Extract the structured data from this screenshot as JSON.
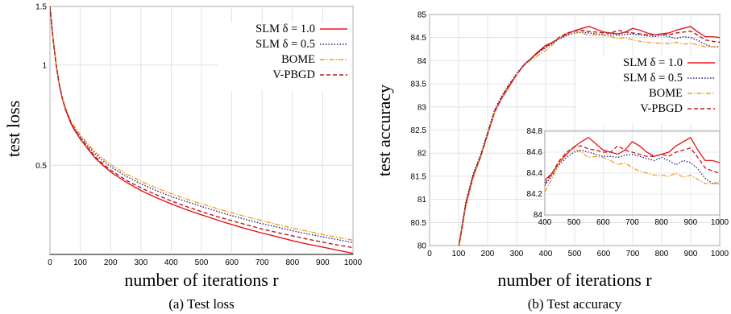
{
  "chart_data": [
    {
      "type": "line",
      "xlabel": "number of iterations r",
      "ylabel": "test loss",
      "caption": "(a) Test loss",
      "y_scale": "log",
      "xlim": [
        0,
        1000
      ],
      "ylim": [
        0.27,
        1.5
      ],
      "xticks": [
        0,
        100,
        200,
        300,
        400,
        500,
        600,
        700,
        800,
        900,
        1000
      ],
      "yticks": [
        0.5,
        1,
        1.5
      ],
      "grid": true,
      "legend_position": "top-right",
      "x": [
        0,
        10,
        20,
        30,
        40,
        50,
        60,
        70,
        80,
        100,
        125,
        150,
        175,
        200,
        250,
        300,
        350,
        400,
        450,
        500,
        550,
        600,
        650,
        700,
        750,
        800,
        850,
        900,
        950,
        1000
      ],
      "series": [
        {
          "name": "SLM δ = 1.0",
          "color": "#e8131b",
          "dash": "",
          "values": [
            1.5,
            1.2,
            1.01,
            0.88,
            0.8,
            0.74,
            0.7,
            0.665,
            0.64,
            0.6,
            0.56,
            0.525,
            0.5,
            0.478,
            0.446,
            0.42,
            0.4,
            0.383,
            0.368,
            0.355,
            0.343,
            0.332,
            0.322,
            0.313,
            0.305,
            0.297,
            0.29,
            0.284,
            0.278,
            0.272
          ]
        },
        {
          "name": "SLM δ = 0.5",
          "color": "#1d1d8a",
          "dash": "1.5,2",
          "values": [
            1.5,
            1.2,
            1.01,
            0.88,
            0.8,
            0.745,
            0.705,
            0.672,
            0.648,
            0.61,
            0.572,
            0.54,
            0.516,
            0.495,
            0.464,
            0.44,
            0.42,
            0.403,
            0.389,
            0.376,
            0.364,
            0.353,
            0.343,
            0.334,
            0.326,
            0.318,
            0.311,
            0.305,
            0.299,
            0.293
          ]
        },
        {
          "name": "BOME",
          "color": "#f0a020",
          "dash": "6,2,1.5,2",
          "values": [
            1.5,
            1.2,
            1.01,
            0.885,
            0.805,
            0.75,
            0.71,
            0.678,
            0.655,
            0.618,
            0.58,
            0.548,
            0.524,
            0.503,
            0.472,
            0.448,
            0.428,
            0.411,
            0.396,
            0.383,
            0.371,
            0.36,
            0.35,
            0.341,
            0.332,
            0.324,
            0.317,
            0.31,
            0.304,
            0.298
          ]
        },
        {
          "name": "V-PBGD",
          "color": "#b71c1c",
          "dash": "5,3",
          "values": [
            1.5,
            1.2,
            1.01,
            0.88,
            0.8,
            0.742,
            0.702,
            0.668,
            0.643,
            0.604,
            0.564,
            0.53,
            0.505,
            0.484,
            0.452,
            0.428,
            0.408,
            0.391,
            0.376,
            0.363,
            0.351,
            0.341,
            0.331,
            0.322,
            0.314,
            0.307,
            0.3,
            0.294,
            0.288,
            0.283
          ]
        }
      ]
    },
    {
      "type": "line",
      "xlabel": "number of iterations r",
      "ylabel": "test accuracy",
      "caption": "(b) Test accuracy",
      "xlim": [
        0,
        1000
      ],
      "ylim": [
        80,
        85
      ],
      "xticks": [
        0,
        100,
        200,
        300,
        400,
        500,
        600,
        700,
        800,
        900,
        1000
      ],
      "yticks": [
        80,
        80.5,
        81,
        81.5,
        82,
        82.5,
        83,
        83.5,
        84,
        84.5,
        85
      ],
      "grid": true,
      "legend_position": "center-right",
      "x": [
        100,
        125,
        150,
        175,
        200,
        225,
        250,
        275,
        300,
        325,
        350,
        375,
        400,
        425,
        450,
        475,
        500,
        525,
        550,
        575,
        600,
        625,
        650,
        675,
        700,
        725,
        750,
        775,
        800,
        825,
        850,
        875,
        900,
        925,
        950,
        975,
        1000
      ],
      "series": [
        {
          "name": "SLM δ = 1.0",
          "color": "#e8131b",
          "dash": "",
          "values": [
            79.95,
            80.9,
            81.5,
            81.9,
            82.4,
            82.9,
            83.2,
            83.45,
            83.7,
            83.9,
            84.05,
            84.2,
            84.33,
            84.4,
            84.5,
            84.58,
            84.65,
            84.7,
            84.74,
            84.68,
            84.62,
            84.6,
            84.58,
            84.62,
            84.7,
            84.66,
            84.6,
            84.56,
            84.58,
            84.6,
            84.66,
            84.7,
            84.74,
            84.62,
            84.52,
            84.52,
            84.5
          ]
        },
        {
          "name": "SLM δ = 0.5",
          "color": "#1d1d8a",
          "dash": "1.5,2",
          "values": [
            79.95,
            80.95,
            81.55,
            81.95,
            82.45,
            82.95,
            83.25,
            83.5,
            83.72,
            83.92,
            84.05,
            84.18,
            84.28,
            84.38,
            84.48,
            84.55,
            84.6,
            84.62,
            84.6,
            84.58,
            84.56,
            84.56,
            84.55,
            84.57,
            84.58,
            84.56,
            84.54,
            84.52,
            84.55,
            84.52,
            84.48,
            84.52,
            84.5,
            84.44,
            84.35,
            84.3,
            84.3
          ]
        },
        {
          "name": "BOME",
          "color": "#f0a020",
          "dash": "6,2,1.5,2",
          "values": [
            79.9,
            80.85,
            81.45,
            81.9,
            82.4,
            82.9,
            83.22,
            83.48,
            83.7,
            83.9,
            84.02,
            84.12,
            84.22,
            84.35,
            84.5,
            84.6,
            84.63,
            84.6,
            84.55,
            84.56,
            84.55,
            84.52,
            84.48,
            84.5,
            84.45,
            84.42,
            84.4,
            84.38,
            84.38,
            84.37,
            84.4,
            84.36,
            84.38,
            84.34,
            84.3,
            84.3,
            84.32
          ]
        },
        {
          "name": "V-PBGD",
          "color": "#b71c1c",
          "dash": "5,3",
          "values": [
            79.95,
            80.9,
            81.5,
            81.92,
            82.42,
            82.92,
            83.22,
            83.48,
            83.7,
            83.9,
            84.05,
            84.18,
            84.3,
            84.4,
            84.52,
            84.6,
            84.65,
            84.66,
            84.63,
            84.62,
            84.6,
            84.6,
            84.66,
            84.62,
            84.6,
            84.58,
            84.56,
            84.56,
            84.58,
            84.56,
            84.6,
            84.62,
            84.64,
            84.55,
            84.45,
            84.42,
            84.4
          ]
        }
      ],
      "inset": {
        "xlim": [
          400,
          1000
        ],
        "ylim": [
          84,
          84.8
        ],
        "xticks": [
          400,
          500,
          600,
          700,
          800,
          900,
          1000
        ],
        "yticks": [
          84,
          84.2,
          84.4,
          84.6,
          84.8
        ]
      }
    }
  ]
}
